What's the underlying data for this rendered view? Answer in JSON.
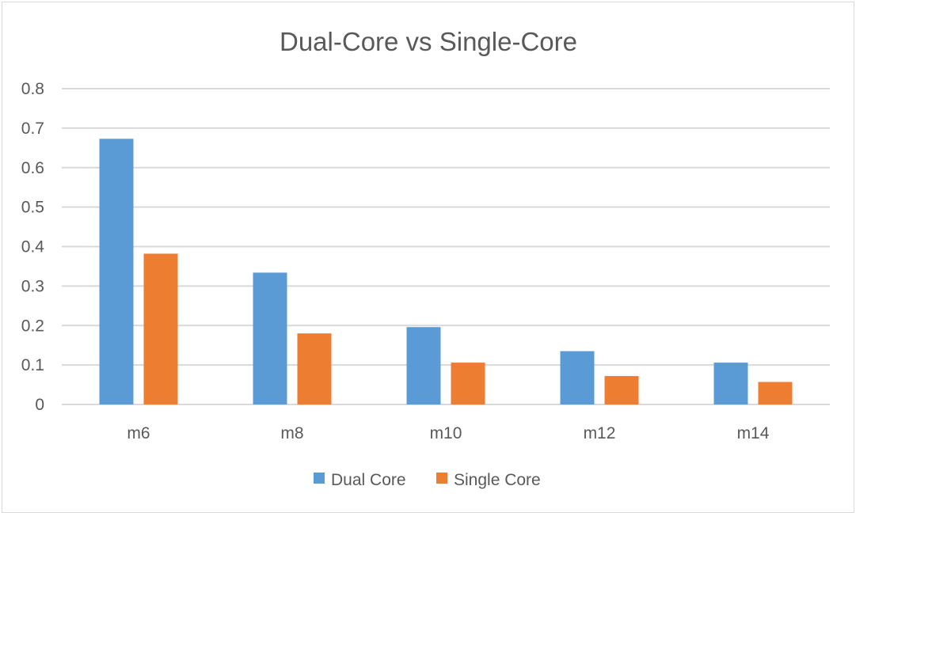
{
  "chart_data": {
    "type": "bar",
    "title": "Dual-Core vs Single-Core",
    "xlabel": "",
    "ylabel": "",
    "categories": [
      "m6",
      "m8",
      "m10",
      "m12",
      "m14"
    ],
    "series": [
      {
        "name": "Dual Core",
        "color": "#5b9bd5",
        "values": [
          0.673,
          0.334,
          0.196,
          0.135,
          0.106
        ]
      },
      {
        "name": "Single Core",
        "color": "#ed7d31",
        "values": [
          0.382,
          0.18,
          0.106,
          0.072,
          0.057
        ]
      }
    ],
    "ylim": [
      0,
      0.8
    ],
    "yticks": [
      "0",
      "0.1",
      "0.2",
      "0.3",
      "0.4",
      "0.5",
      "0.6",
      "0.7",
      "0.8"
    ],
    "grid": true,
    "legend_position": "bottom"
  }
}
